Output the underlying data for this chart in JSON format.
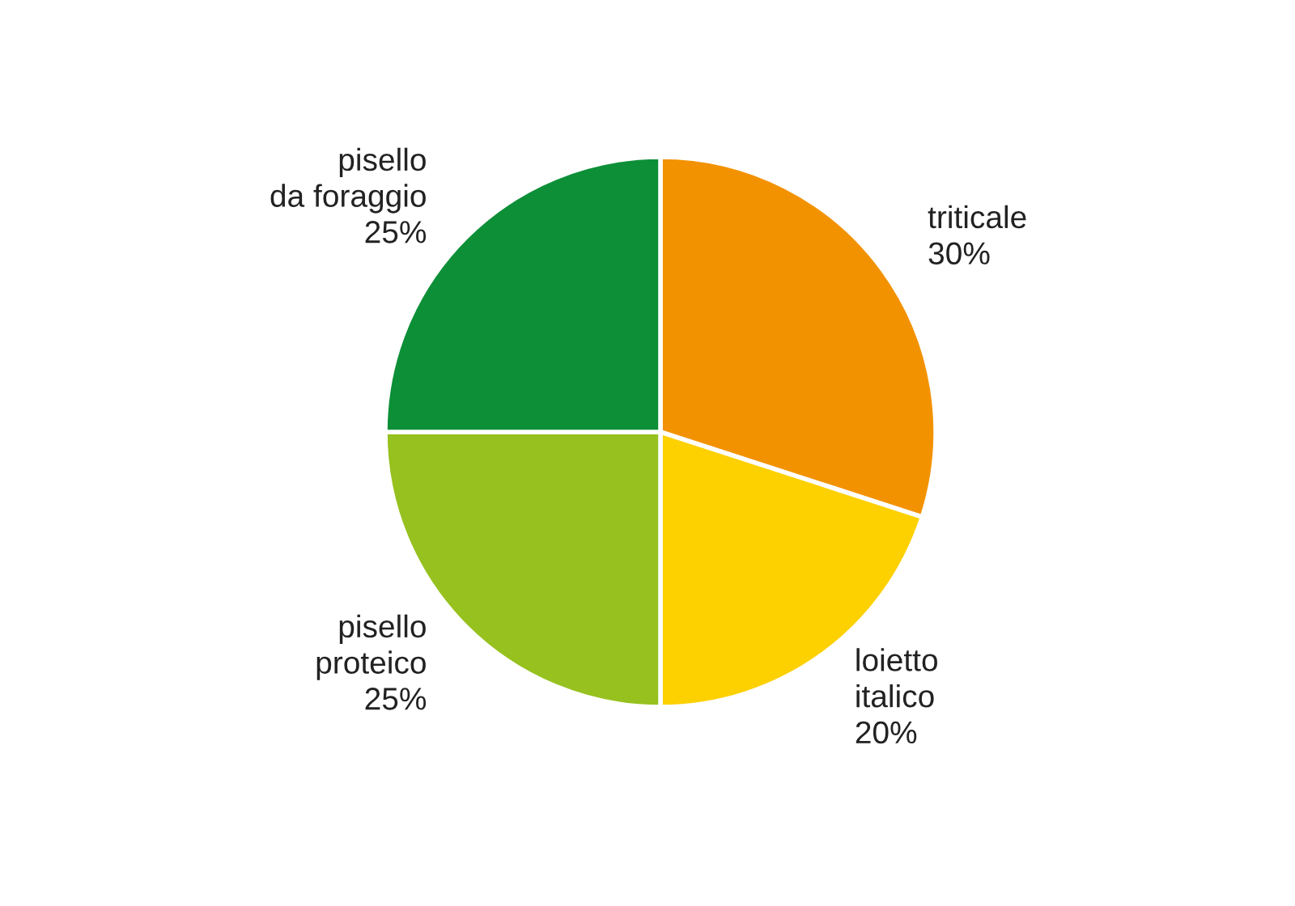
{
  "chart_data": {
    "type": "pie",
    "categories": [
      "triticale",
      "loietto\nitalico",
      "pisello\nproteico",
      "pisello\nda foraggio"
    ],
    "values": [
      30,
      20,
      25,
      25
    ],
    "value_labels": [
      "30%",
      "20%",
      "25%",
      "25%"
    ],
    "colors": [
      "#f39200",
      "#fdd000",
      "#96c11f",
      "#0d8f37"
    ],
    "legend": false
  }
}
